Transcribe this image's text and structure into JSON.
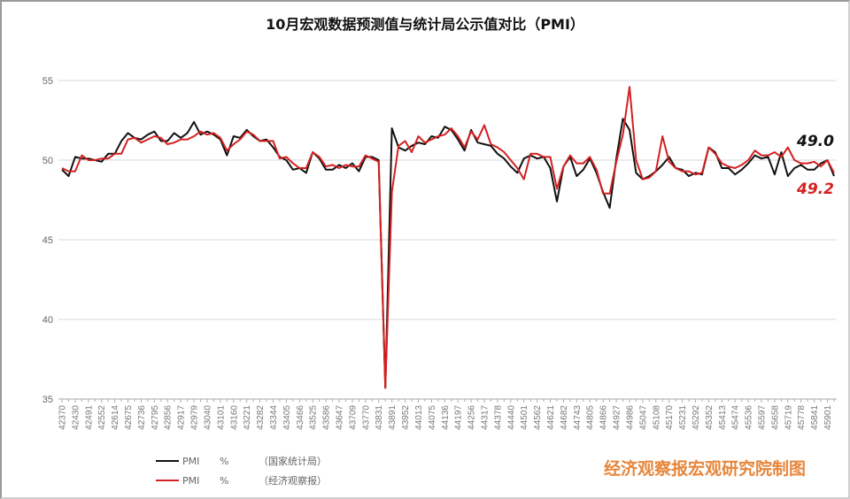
{
  "chart_data": {
    "type": "line",
    "title": "10月宏观数据预测值与统计局公示值对比（PMI）",
    "xlabel": "",
    "ylabel": "",
    "ylim": [
      35,
      55
    ],
    "yticks": [
      35,
      40,
      45,
      50,
      55
    ],
    "grid": true,
    "legend_position": "bottom-left",
    "x_tick_labels": [
      "42370",
      "42430",
      "42491",
      "42552",
      "42614",
      "42675",
      "42736",
      "42795",
      "42856",
      "42917",
      "42979",
      "43040",
      "43101",
      "43160",
      "43221",
      "43282",
      "43344",
      "43405",
      "43466",
      "43525",
      "43586",
      "43647",
      "43709",
      "43770",
      "43831",
      "43891",
      "43952",
      "44013",
      "44075",
      "44136",
      "44197",
      "44256",
      "44317",
      "44378",
      "44440",
      "44501",
      "44562",
      "44621",
      "44682",
      "44743",
      "44805",
      "44866",
      "44927",
      "44986",
      "45047",
      "45108",
      "45170",
      "45231",
      "45292",
      "45352",
      "45413",
      "45474",
      "45536",
      "45597",
      "45658",
      "45719",
      "45778",
      "45841",
      "45901"
    ],
    "series": [
      {
        "name": "PMI　%　（国家统计局）",
        "color": "#111111",
        "values": [
          49.4,
          49.0,
          50.2,
          50.1,
          50.1,
          50.0,
          49.9,
          50.4,
          50.4,
          51.2,
          51.7,
          51.4,
          51.3,
          51.6,
          51.8,
          51.2,
          51.2,
          51.7,
          51.4,
          51.7,
          52.4,
          51.6,
          51.8,
          51.6,
          51.3,
          50.3,
          51.5,
          51.4,
          51.9,
          51.5,
          51.2,
          51.3,
          50.8,
          50.2,
          50.0,
          49.4,
          49.5,
          49.2,
          50.5,
          50.1,
          49.4,
          49.4,
          49.7,
          49.5,
          49.8,
          49.3,
          50.2,
          50.2,
          50.0,
          35.7,
          52.0,
          50.8,
          50.6,
          50.9,
          51.1,
          51.0,
          51.5,
          51.4,
          52.1,
          51.9,
          51.3,
          50.6,
          51.9,
          51.1,
          51.0,
          50.9,
          50.4,
          50.1,
          49.6,
          49.2,
          50.1,
          50.3,
          50.1,
          50.2,
          49.5,
          47.4,
          49.6,
          50.2,
          49.0,
          49.4,
          50.1,
          49.2,
          48.0,
          47.0,
          50.1,
          52.6,
          51.9,
          49.2,
          48.8,
          49.0,
          49.3,
          49.7,
          50.2,
          49.5,
          49.4,
          49.0,
          49.2,
          49.1,
          50.8,
          50.5,
          49.5,
          49.5,
          49.1,
          49.4,
          49.8,
          50.3,
          50.1,
          50.2,
          49.1,
          50.5,
          49.0,
          49.5,
          49.7,
          49.4,
          49.4,
          49.8,
          50.0,
          49.0
        ],
        "annotation": "49.0"
      },
      {
        "name": "PMI　%　（经济观察报）",
        "color": "#d42020",
        "values": [
          49.5,
          49.3,
          49.3,
          50.3,
          50.0,
          50.0,
          50.1,
          50.1,
          50.4,
          50.4,
          51.3,
          51.4,
          51.1,
          51.3,
          51.5,
          51.4,
          51.0,
          51.1,
          51.3,
          51.3,
          51.5,
          51.8,
          51.6,
          51.7,
          51.4,
          50.6,
          51.0,
          51.3,
          51.8,
          51.6,
          51.2,
          51.2,
          51.2,
          50.1,
          50.2,
          49.8,
          49.5,
          49.5,
          50.5,
          50.2,
          49.6,
          49.7,
          49.5,
          49.7,
          49.6,
          49.6,
          50.3,
          50.1,
          49.9,
          35.7,
          48.0,
          50.9,
          51.2,
          50.5,
          51.5,
          51.1,
          51.3,
          51.5,
          51.6,
          52.0,
          51.5,
          50.8,
          51.8,
          51.3,
          52.2,
          51.0,
          50.8,
          50.5,
          50.0,
          49.5,
          48.8,
          50.4,
          50.4,
          50.2,
          50.2,
          48.2,
          49.6,
          50.3,
          49.8,
          49.8,
          50.2,
          49.4,
          47.9,
          47.9,
          49.9,
          51.6,
          54.6,
          50.0,
          48.8,
          48.9,
          49.3,
          51.5,
          49.9,
          49.5,
          49.3,
          49.3,
          49.1,
          49.2,
          50.8,
          50.4,
          49.8,
          49.6,
          49.5,
          49.7,
          50.0,
          50.6,
          50.3,
          50.3,
          50.5,
          50.2,
          50.8,
          50.0,
          49.8,
          49.8,
          49.9,
          49.6,
          50.0,
          49.2
        ],
        "annotation": "49.2"
      }
    ]
  },
  "title": "10月宏观数据预测值与统计局公示值对比（PMI）",
  "legend": [
    {
      "name": "PMI",
      "unit": "%",
      "source": "（国家统计局）",
      "color": "#111111"
    },
    {
      "name": "PMI",
      "unit": "%",
      "source": "（经济观察报）",
      "color": "#d42020"
    }
  ],
  "annotations": {
    "nbs_last": "49.0",
    "eeo_last": "49.2"
  },
  "credit": "经济观察报宏观研究院制图"
}
